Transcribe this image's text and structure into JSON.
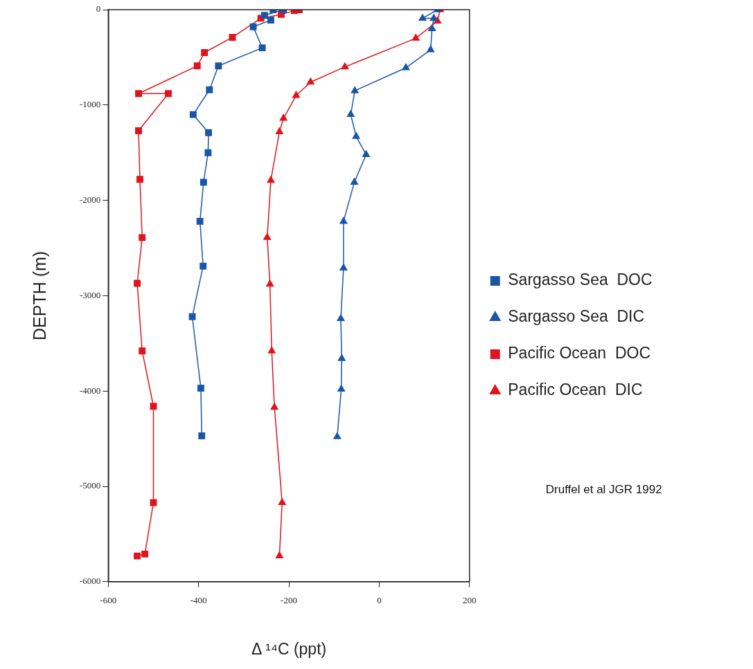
{
  "chart_data": {
    "type": "line",
    "xlabel": "Δ ¹⁴C (ppt)",
    "ylabel": "DEPTH (m)",
    "xlim": [
      -600,
      200
    ],
    "xticks": [
      -600,
      -400,
      -200,
      0,
      200
    ],
    "ylim": [
      -6000,
      0
    ],
    "yticks": [
      -6000,
      -5000,
      -4000,
      -3000,
      -2000,
      -1000,
      0
    ],
    "grid": false,
    "legend": "right",
    "line_style": "solid",
    "annotations": [
      "Druffel et al JGR 1992"
    ],
    "series": [
      {
        "name": "Sargasso Sea  DOC",
        "color": "#1a56a8",
        "marker": "square",
        "x": [
          -235,
          -212,
          -254,
          -240,
          -279,
          -259,
          -356,
          -376,
          -412,
          -378,
          -379,
          -389,
          -397,
          -390,
          -414,
          -395,
          -393
        ],
        "values": [
          0,
          0,
          -60,
          -110,
          -180,
          -400,
          -590,
          -840,
          -1100,
          -1290,
          -1500,
          -1810,
          -2220,
          -2690,
          -3220,
          -3970,
          -4470
        ]
      },
      {
        "name": "Sargasso Sea  DIC",
        "color": "#1a56a8",
        "marker": "triangle",
        "x": [
          129,
          96,
          121,
          117,
          114,
          59,
          -54,
          -63,
          -51,
          -29,
          -55,
          -79,
          -79,
          -85,
          -83,
          -84,
          -93
        ],
        "values": [
          0,
          -90,
          -90,
          -200,
          -420,
          -610,
          -850,
          -1100,
          -1330,
          -1520,
          -1810,
          -2220,
          -2710,
          -3240,
          -3660,
          -3980,
          -4480
        ]
      },
      {
        "name": "Pacific Ocean  DOC",
        "color": "#e0141c",
        "marker": "square",
        "x": [
          -177,
          -188,
          -217,
          -262,
          -325,
          -387,
          -403,
          -533,
          -467,
          -533,
          -530,
          -525,
          -536,
          -525,
          -500,
          -500,
          -519,
          -536
        ],
        "values": [
          0,
          -10,
          -50,
          -90,
          -290,
          -450,
          -590,
          -880,
          -880,
          -1270,
          -1780,
          -2390,
          -2870,
          -3580,
          -4160,
          -5170,
          -5710,
          -5730
        ]
      },
      {
        "name": "Pacific Ocean  DIC",
        "color": "#e0141c",
        "marker": "triangle",
        "x": [
          135,
          129,
          81,
          -76,
          -152,
          -184,
          -212,
          -221,
          -240,
          -248,
          -242,
          -238,
          -232,
          -215,
          -221
        ],
        "values": [
          0,
          -120,
          -300,
          -600,
          -760,
          -900,
          -1140,
          -1280,
          -1790,
          -2390,
          -2880,
          -3580,
          -4170,
          -5170,
          -5730
        ]
      }
    ]
  }
}
